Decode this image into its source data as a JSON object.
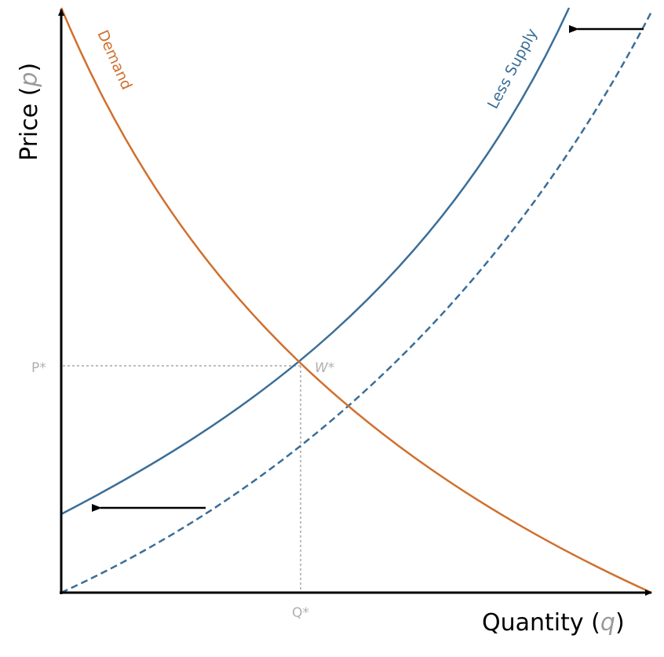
{
  "y_axis": {
    "label": [
      "Price (",
      "p",
      ")"
    ]
  },
  "x_axis": {
    "label": [
      "Quantity (",
      "q",
      ")"
    ]
  },
  "curves": {
    "demand": "Demand",
    "supply": "Less Supply"
  },
  "points": {
    "price": "P*",
    "quantity": "Q*",
    "equilibrium": "W*"
  }
}
